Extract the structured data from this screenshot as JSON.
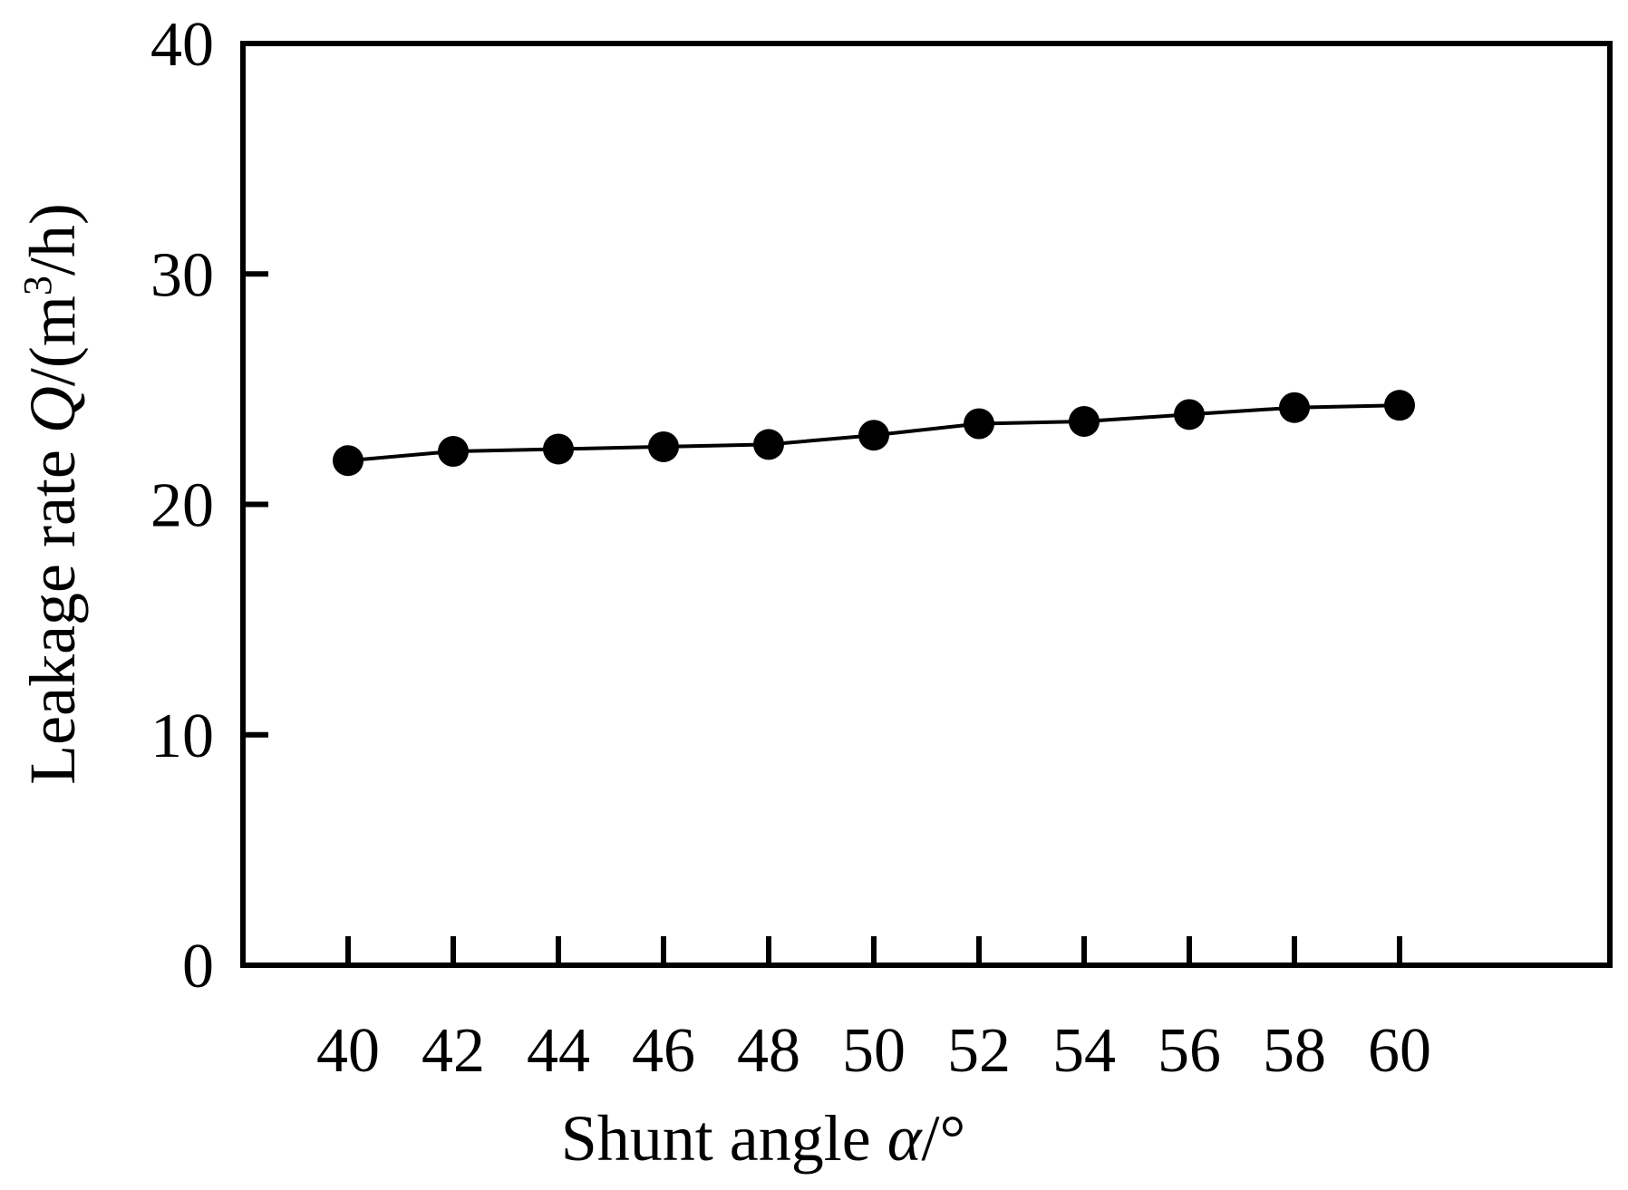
{
  "chart_data": {
    "type": "line",
    "x": [
      40,
      42,
      44,
      46,
      48,
      50,
      52,
      54,
      56,
      58,
      60
    ],
    "series": [
      {
        "values": [
          21.9,
          22.3,
          22.4,
          22.5,
          22.6,
          23.0,
          23.5,
          23.6,
          23.9,
          24.2,
          24.3
        ]
      }
    ],
    "xlabel": {
      "text": "Shunt angle ",
      "var": "α",
      "unit": "/°"
    },
    "ylabel": {
      "text": "Leakage rate ",
      "var": "Q",
      "unit_pre": "/(m",
      "unit_sup": "3",
      "unit_post": "/h)"
    },
    "xticks": [
      "40",
      "42",
      "44",
      "46",
      "48",
      "50",
      "52",
      "54",
      "56",
      "58",
      "60"
    ],
    "yticks": [
      "0",
      "10",
      "20",
      "30",
      "40"
    ],
    "xlim": [
      38,
      64
    ],
    "ylim": [
      0,
      40
    ],
    "grid": false,
    "legend": false,
    "line_color": "#000000",
    "marker": "filled-circle"
  }
}
